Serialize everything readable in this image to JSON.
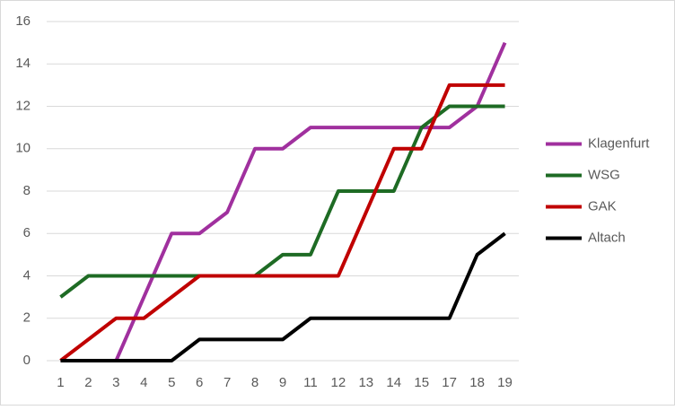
{
  "chart_data": {
    "type": "line",
    "categories": [
      "1",
      "2",
      "3",
      "4",
      "5",
      "6",
      "7",
      "8",
      "9",
      "11",
      "12",
      "13",
      "14",
      "15",
      "17",
      "18",
      "19"
    ],
    "series": [
      {
        "name": "Klagenfurt",
        "color": "#a0309e",
        "values": [
          0,
          0,
          0,
          3,
          6,
          6,
          7,
          10,
          10,
          11,
          11,
          11,
          11,
          11,
          11,
          12,
          15
        ]
      },
      {
        "name": "WSG",
        "color": "#1e6b24",
        "values": [
          3,
          4,
          4,
          4,
          4,
          4,
          4,
          4,
          5,
          5,
          8,
          8,
          8,
          11,
          12,
          12,
          12
        ]
      },
      {
        "name": "GAK",
        "color": "#c00000",
        "values": [
          0,
          1,
          2,
          2,
          3,
          4,
          4,
          4,
          4,
          4,
          4,
          7,
          10,
          10,
          13,
          13,
          13
        ]
      },
      {
        "name": "Altach",
        "color": "#000000",
        "values": [
          0,
          0,
          0,
          0,
          0,
          1,
          1,
          1,
          1,
          2,
          2,
          2,
          2,
          2,
          2,
          5,
          6
        ]
      }
    ],
    "ylim": [
      0,
      16
    ],
    "yticks": [
      0,
      2,
      4,
      6,
      8,
      10,
      12,
      14,
      16
    ],
    "grid": true,
    "legend": "right"
  }
}
